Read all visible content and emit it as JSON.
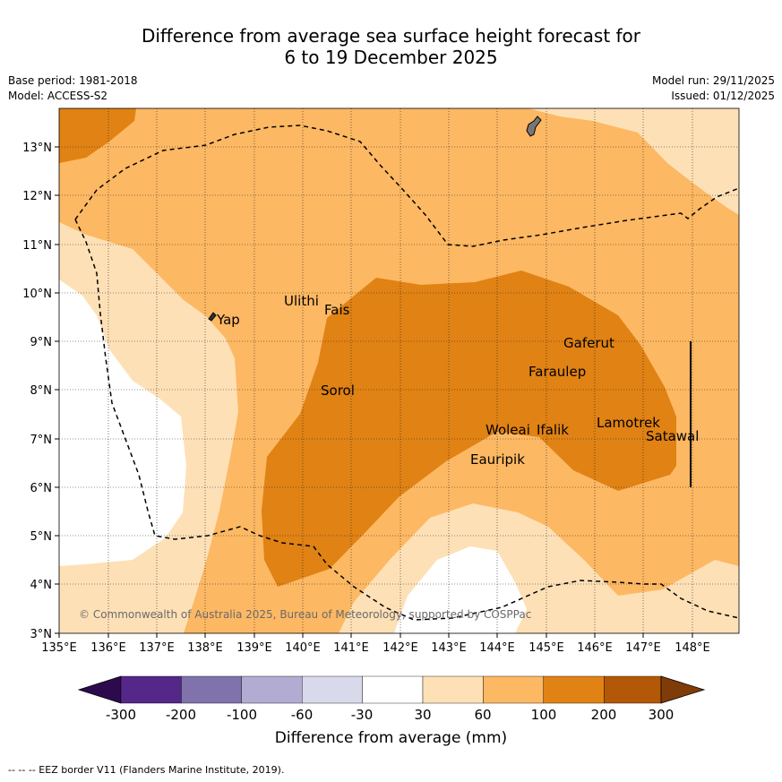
{
  "header": {
    "title_line1": "Difference from average sea surface height forecast for",
    "title_line2": "6 to 19 December 2025",
    "base_period": "Base period: 1981-2018",
    "model": "Model: ACCESS-S2",
    "model_run": "Model run: 29/11/2025",
    "issued": "Issued: 01/12/2025"
  },
  "map": {
    "lon_labels": [
      "135°E",
      "136°E",
      "137°E",
      "138°E",
      "139°E",
      "140°E",
      "141°E",
      "142°E",
      "143°E",
      "144°E",
      "145°E",
      "146°E",
      "147°E",
      "148°E"
    ],
    "lat_labels": [
      "13°N",
      "12°N",
      "11°N",
      "10°N",
      "9°N",
      "8°N",
      "7°N",
      "6°N",
      "5°N",
      "4°N",
      "3°N"
    ],
    "places": [
      "Ulithi",
      "Fais",
      "Yap",
      "Gaferut",
      "Faraulep",
      "Sorol",
      "Lamotrek",
      "Woleai",
      "Ifalik",
      "Satawal",
      "Eauripik"
    ],
    "copyright": "© Commonwealth of Australia 2025, Bureau of Meteorology, supported by COSPPac"
  },
  "colorbar": {
    "colors": [
      "#2d0a4e",
      "#542788",
      "#8073ac",
      "#b2abd2",
      "#d8daeb",
      "#ffffff",
      "#fee0b6",
      "#fdb863",
      "#e08214",
      "#b35806",
      "#7f3b08"
    ],
    "tick_labels": [
      "-300",
      "-200",
      "-100",
      "-60",
      "-30",
      "30",
      "60",
      "100",
      "200",
      "300"
    ],
    "title": "Difference from average (mm)"
  },
  "legend": {
    "eez": "--  --  -- EEZ border V11 (Flanders Marine Institute, 2019)."
  }
}
